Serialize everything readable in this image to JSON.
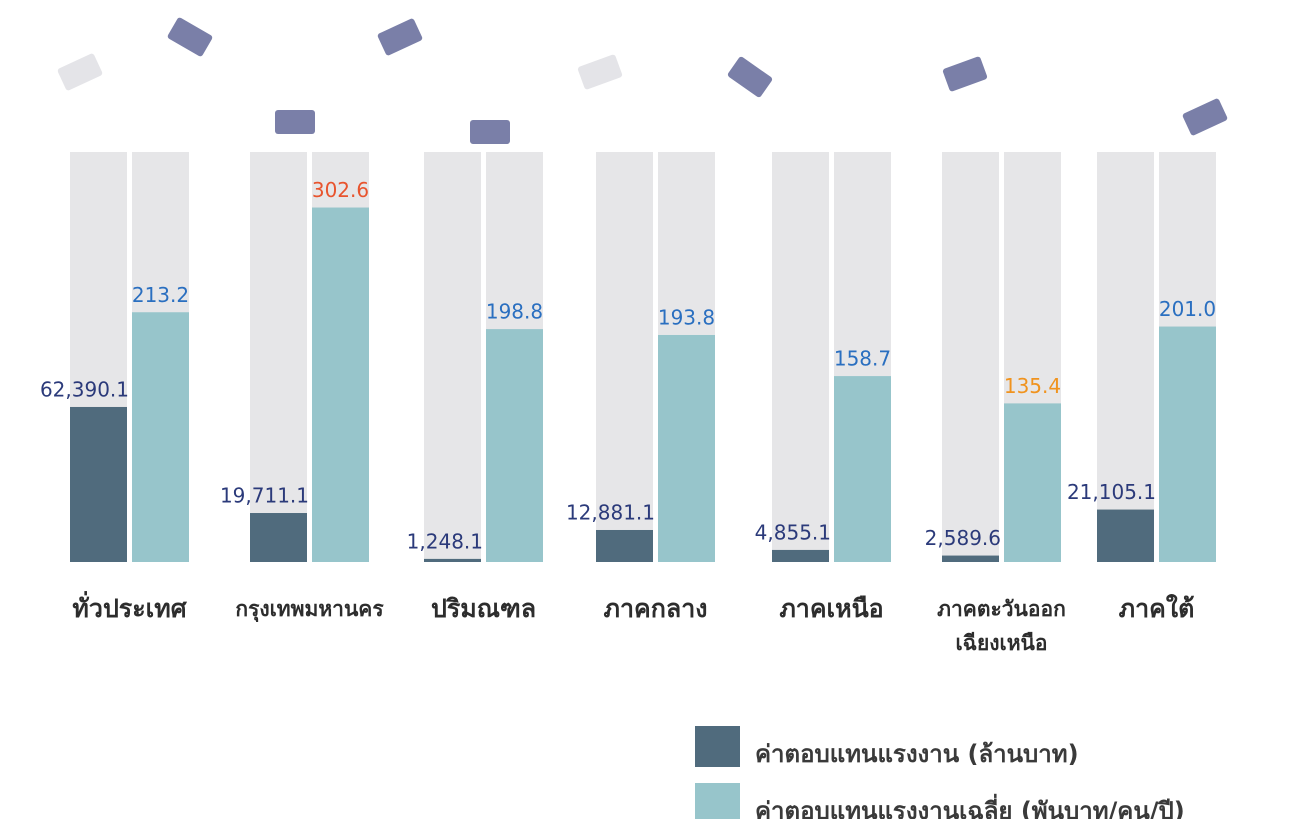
{
  "chart_data": {
    "type": "bar",
    "categories": [
      "ทั่วประเทศ",
      "กรุงเทพมหานคร",
      "ปริมณฑล",
      "ภาคกลาง",
      "ภาคเหนือ",
      "ภาคตะวันออก\nเฉียงเหนือ",
      "ภาคใต้"
    ],
    "series": [
      {
        "name": "ค่าตอบแทนแรงงาน (ล้านบาท)",
        "color": "#506b7d",
        "values": [
          62390.1,
          19711.1,
          1248.1,
          12881.1,
          4855.1,
          2589.6,
          21105.1
        ],
        "value_labels": [
          "62,390.1",
          "19,711.1",
          "1,248.1",
          "12,881.1",
          "4,855.1",
          "2,589.6",
          "21,105.1"
        ],
        "label_colors": [
          "#2b3a7a",
          "#2b3a7a",
          "#2b3a7a",
          "#2b3a7a",
          "#2b3a7a",
          "#2b3a7a",
          "#2b3a7a"
        ]
      },
      {
        "name": "ค่าตอบแทนแรงงานเฉลี่ย (พันบาท/คน/ปี)",
        "color": "#97c5cb",
        "axis": "y2",
        "values": [
          213.2,
          302.6,
          198.8,
          193.8,
          158.7,
          135.4,
          201.0
        ],
        "value_labels": [
          "213.2",
          "302.6",
          "198.8",
          "193.8",
          "158.7",
          "135.4",
          "201.0"
        ],
        "label_colors": [
          "#2a6fc0",
          "#e8542e",
          "#2a6fc0",
          "#2a6fc0",
          "#2a6fc0",
          "#f0931e",
          "#2a6fc0"
        ]
      }
    ],
    "ylim": [
      0,
      165000
    ],
    "y2lim": [
      0,
      350
    ]
  }
}
